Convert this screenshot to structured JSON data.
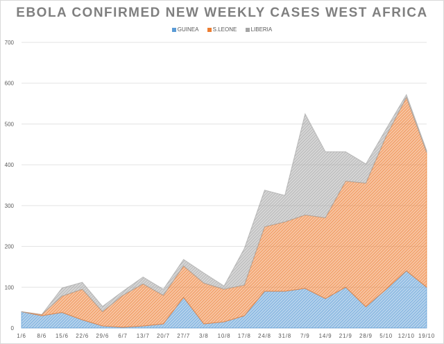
{
  "chart_data": {
    "type": "area",
    "stacked": true,
    "title": "EBOLA CONFIRMED NEW WEEKLY CASES WEST AFRICA",
    "xlabel": "",
    "ylabel": "",
    "ylim": [
      0,
      700
    ],
    "yticks": [
      0,
      100,
      200,
      300,
      400,
      500,
      600,
      700
    ],
    "grid": true,
    "legend": "top",
    "categories": [
      "1/6",
      "8/6",
      "15/6",
      "22/6",
      "29/6",
      "6/7",
      "13/7",
      "20/7",
      "27/7",
      "3/8",
      "10/8",
      "17/8",
      "24/8",
      "31/8",
      "7/9",
      "14/9",
      "21/9",
      "28/9",
      "5/10",
      "12/10",
      "19/10"
    ],
    "series": [
      {
        "name": "GUINEA",
        "color": "#5b9bd5",
        "values": [
          40,
          30,
          38,
          20,
          5,
          2,
          5,
          10,
          75,
          10,
          15,
          30,
          90,
          90,
          97,
          72,
          100,
          52,
          95,
          140,
          100
        ]
      },
      {
        "name": "S.LEONE",
        "color": "#ed7d31",
        "values": [
          0,
          3,
          40,
          75,
          35,
          78,
          103,
          70,
          77,
          100,
          80,
          75,
          158,
          170,
          180,
          198,
          260,
          303,
          375,
          425,
          330
        ]
      },
      {
        "name": "LIBERIA",
        "color": "#a5a5a5",
        "values": [
          0,
          0,
          20,
          17,
          13,
          10,
          17,
          15,
          16,
          25,
          8,
          90,
          90,
          65,
          248,
          162,
          72,
          47,
          18,
          7,
          5
        ]
      }
    ]
  }
}
